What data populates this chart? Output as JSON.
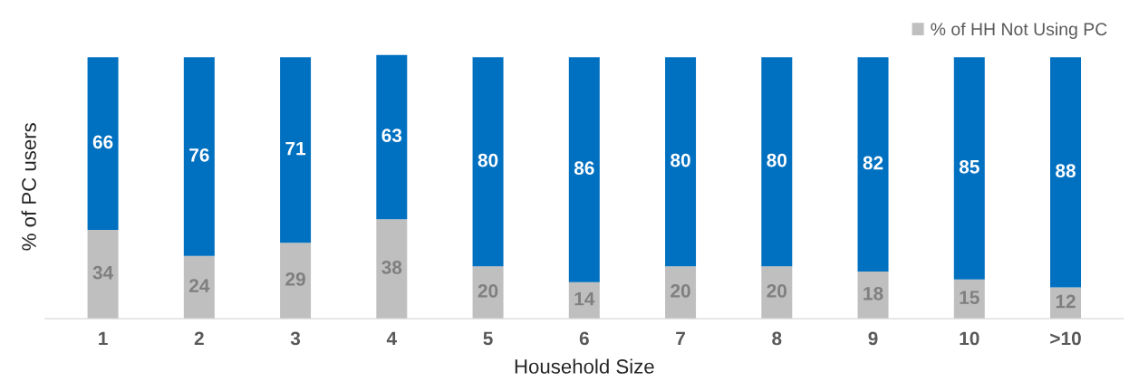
{
  "chart_data": {
    "type": "bar",
    "stacked": true,
    "xlabel": "Household Size",
    "ylabel": "% of PC users",
    "categories": [
      "1",
      "2",
      "3",
      "4",
      "5",
      "6",
      "7",
      "8",
      "9",
      "10",
      ">10"
    ],
    "series": [
      {
        "name": "% of HH Not Using PC",
        "color": "#bfbfbf",
        "values": [
          34,
          24,
          29,
          38,
          20,
          14,
          20,
          20,
          18,
          15,
          12
        ]
      },
      {
        "color": "#0070c0",
        "values": [
          66,
          76,
          71,
          63,
          80,
          86,
          80,
          80,
          82,
          85,
          88
        ]
      }
    ],
    "data_labels": true,
    "legend": "top right",
    "tick_labels": "x",
    "grid": false
  }
}
